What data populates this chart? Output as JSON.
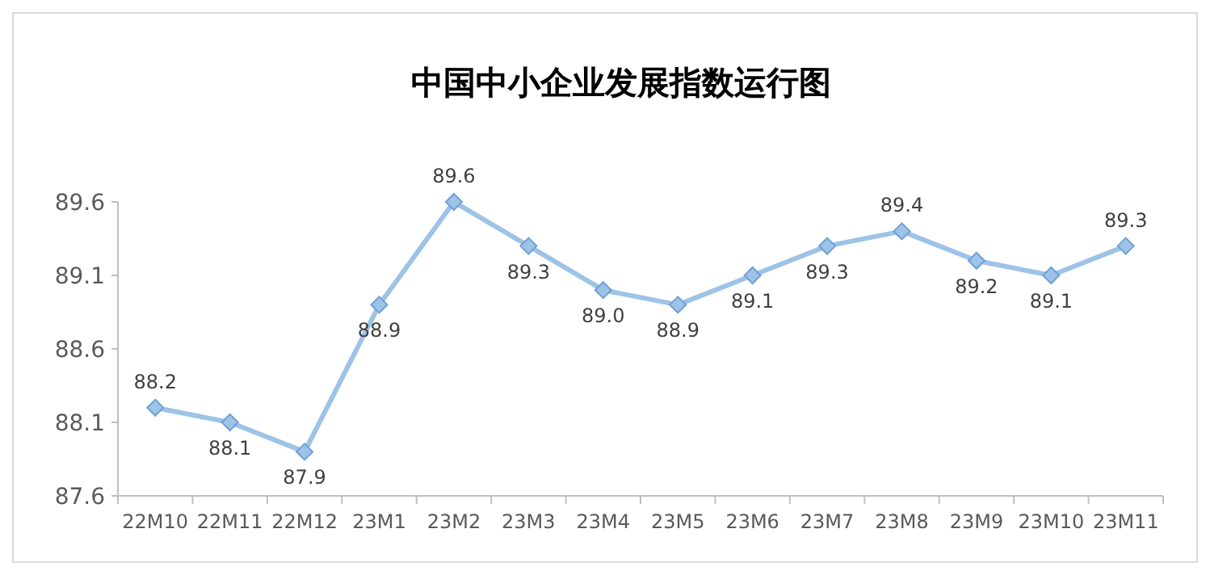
{
  "chart_data": {
    "type": "line",
    "title": "中国中小企业发展指数运行图",
    "categories": [
      "22M10",
      "22M11",
      "22M12",
      "23M1",
      "23M2",
      "23M3",
      "23M4",
      "23M5",
      "23M6",
      "23M7",
      "23M8",
      "23M9",
      "23M10",
      "23M11"
    ],
    "series": [
      {
        "color": "#9dc3e6",
        "values": [
          88.2,
          88.1,
          87.9,
          88.9,
          89.6,
          89.3,
          89.0,
          88.9,
          89.1,
          89.3,
          89.4,
          89.2,
          89.1,
          89.3
        ],
        "value_labels": [
          "88.2",
          "88.1",
          "87.9",
          "88.9",
          "89.6",
          "89.3",
          "89.0",
          "88.9",
          "89.1",
          "89.3",
          "89.4",
          "89.2",
          "89.1",
          "89.3"
        ]
      }
    ],
    "ylim": [
      87.6,
      89.6
    ],
    "yticks": [
      87.6,
      88.1,
      88.6,
      89.1,
      89.6
    ],
    "marker": "diamond",
    "grid": false
  }
}
